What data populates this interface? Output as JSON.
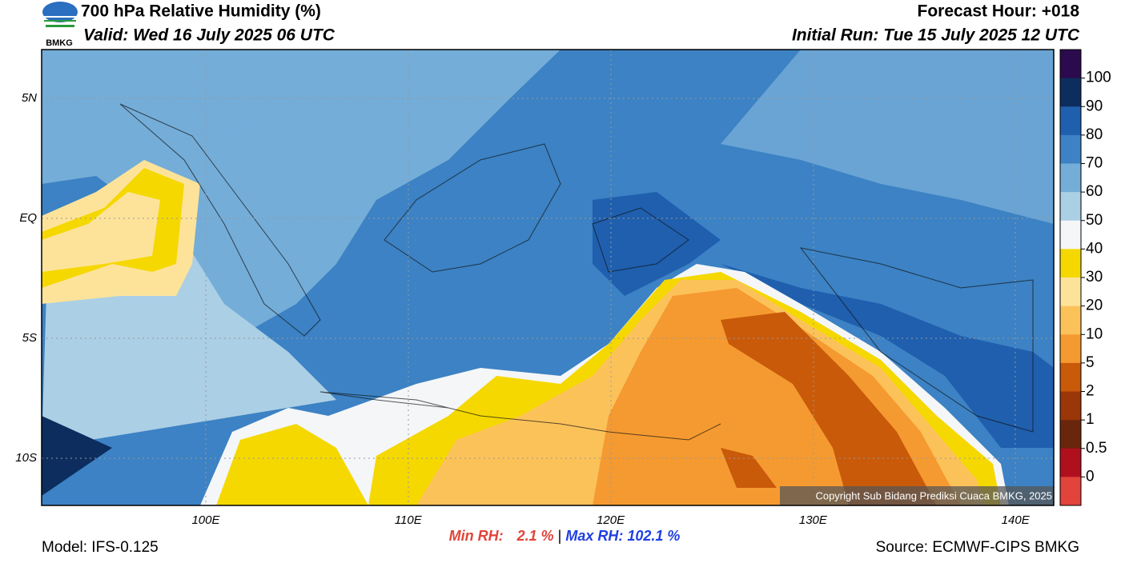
{
  "header": {
    "logo": "BMKG",
    "title": "700 hPa Relative Humidity (%)",
    "valid": "Valid: Wed 16 July 2025 06 UTC",
    "forecast_hour": "Forecast Hour: +018",
    "initial_run": "Initial Run: Tue 15 July 2025 12 UTC"
  },
  "map": {
    "lat_labels": [
      "5N",
      "EQ",
      "5S",
      "10S"
    ],
    "lon_labels": [
      "100E",
      "110E",
      "120E",
      "130E",
      "140E"
    ],
    "copyright": "Copyright Sub Bidang Prediksi Cuaca BMKG, 2025"
  },
  "colorbar": {
    "levels": [
      100,
      90,
      80,
      70,
      60,
      50,
      40,
      30,
      20,
      10,
      5,
      2,
      1,
      0.5,
      0
    ],
    "colors": [
      "#2b0b4d",
      "#0c2d5e",
      "#1f5fae",
      "#3c82c4",
      "#74add8",
      "#abcfe5",
      "#f4f6f8",
      "#f5d800",
      "#fde39a",
      "#fcc25a",
      "#f59a30",
      "#c85a0a",
      "#9a3608",
      "#6a260c",
      "#b0101e",
      "#e2433a"
    ]
  },
  "footer": {
    "model": "Model: IFS-0.125",
    "min_rh_label": "Min RH:",
    "min_rh": "2.1 %",
    "separator": "|",
    "max_rh_label": "Max RH:",
    "max_rh": "102.1 %",
    "source": "Source: ECMWF-CIPS BMKG"
  }
}
